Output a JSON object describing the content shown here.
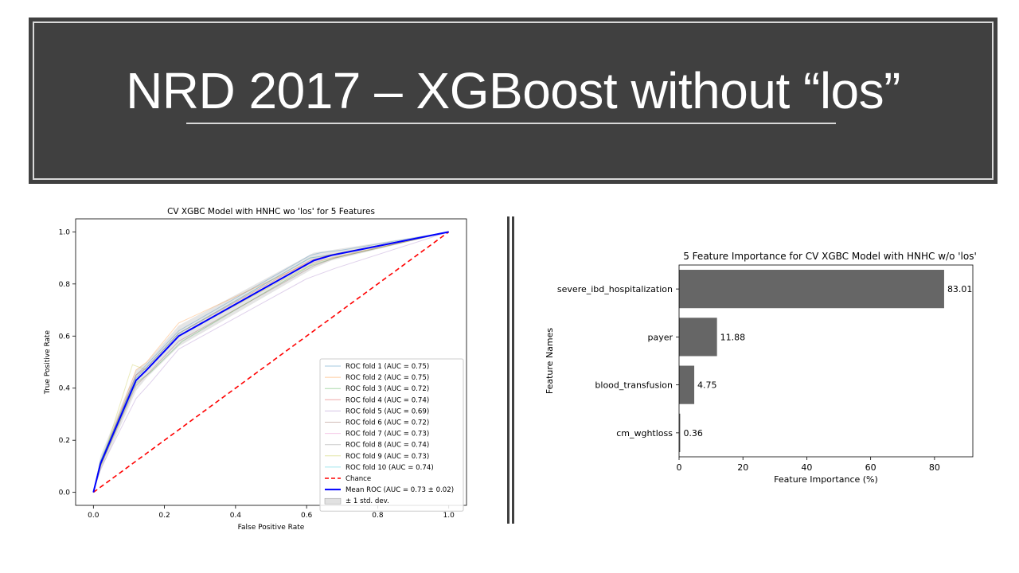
{
  "slide": {
    "title": "NRD 2017 – XGBoost without “los”"
  },
  "chart_data": [
    {
      "type": "line",
      "title": "CV XGBC Model with HNHC wo 'los' for 5 Features",
      "xlabel": "False Positive Rate",
      "ylabel": "True Positive Rate",
      "xlim": [
        -0.05,
        1.05
      ],
      "ylim": [
        -0.05,
        1.05
      ],
      "xticks": [
        "0.0",
        "0.2",
        "0.4",
        "0.6",
        "0.8",
        "1.0"
      ],
      "yticks": [
        "0.0",
        "0.2",
        "0.4",
        "0.6",
        "0.8",
        "1.0"
      ],
      "grid": false,
      "legend_position": "lower-right",
      "series": [
        {
          "name": "ROC fold 1 (AUC = 0.75)",
          "color": "#1f77b4",
          "style": "fold",
          "x": [
            0,
            0.02,
            0.12,
            0.15,
            0.24,
            0.61,
            0.64,
            0.7,
            1.0
          ],
          "y": [
            0,
            0.12,
            0.45,
            0.49,
            0.62,
            0.91,
            0.92,
            0.93,
            1.0
          ]
        },
        {
          "name": "ROC fold 2 (AUC = 0.75)",
          "color": "#ff7f0e",
          "style": "fold",
          "x": [
            0,
            0.02,
            0.12,
            0.15,
            0.24,
            0.62,
            0.66,
            1.0
          ],
          "y": [
            0,
            0.11,
            0.47,
            0.5,
            0.65,
            0.89,
            0.91,
            1.0
          ]
        },
        {
          "name": "ROC fold 3 (AUC = 0.72)",
          "color": "#2ca02c",
          "style": "fold",
          "x": [
            0,
            0.02,
            0.12,
            0.16,
            0.25,
            0.61,
            0.68,
            1.0
          ],
          "y": [
            0,
            0.1,
            0.42,
            0.46,
            0.58,
            0.87,
            0.9,
            1.0
          ]
        },
        {
          "name": "ROC fold 4 (AUC = 0.74)",
          "color": "#d62728",
          "style": "fold",
          "x": [
            0,
            0.02,
            0.12,
            0.15,
            0.24,
            0.61,
            0.66,
            1.0
          ],
          "y": [
            0,
            0.11,
            0.45,
            0.48,
            0.61,
            0.89,
            0.91,
            1.0
          ]
        },
        {
          "name": "ROC fold 5 (AUC = 0.69)",
          "color": "#9467bd",
          "style": "fold",
          "x": [
            0,
            0.02,
            0.12,
            0.16,
            0.24,
            0.6,
            0.68,
            1.0
          ],
          "y": [
            0,
            0.09,
            0.36,
            0.42,
            0.55,
            0.82,
            0.86,
            1.0
          ]
        },
        {
          "name": "ROC fold 6 (AUC = 0.72)",
          "color": "#8c564b",
          "style": "fold",
          "x": [
            0,
            0.02,
            0.12,
            0.15,
            0.24,
            0.62,
            0.68,
            1.0
          ],
          "y": [
            0,
            0.1,
            0.41,
            0.45,
            0.58,
            0.87,
            0.9,
            1.0
          ]
        },
        {
          "name": "ROC fold 7 (AUC = 0.73)",
          "color": "#e377c2",
          "style": "fold",
          "x": [
            0,
            0.02,
            0.12,
            0.15,
            0.24,
            0.61,
            0.67,
            1.0
          ],
          "y": [
            0,
            0.11,
            0.43,
            0.47,
            0.6,
            0.88,
            0.9,
            1.0
          ]
        },
        {
          "name": "ROC fold 8 (AUC = 0.74)",
          "color": "#7f7f7f",
          "style": "fold",
          "x": [
            0,
            0.02,
            0.12,
            0.15,
            0.24,
            0.61,
            0.66,
            1.0
          ],
          "y": [
            0,
            0.12,
            0.44,
            0.48,
            0.61,
            0.9,
            0.91,
            1.0
          ]
        },
        {
          "name": "ROC fold 9 (AUC = 0.73)",
          "color": "#bcbd22",
          "style": "fold",
          "x": [
            0,
            0.02,
            0.11,
            0.15,
            0.24,
            0.62,
            0.67,
            1.0
          ],
          "y": [
            0,
            0.1,
            0.49,
            0.47,
            0.6,
            0.88,
            0.9,
            1.0
          ]
        },
        {
          "name": "ROC fold 10 (AUC = 0.74)",
          "color": "#17becf",
          "style": "fold",
          "x": [
            0,
            0.02,
            0.12,
            0.15,
            0.24,
            0.61,
            0.66,
            1.0
          ],
          "y": [
            0,
            0.12,
            0.44,
            0.48,
            0.61,
            0.9,
            0.91,
            1.0
          ]
        },
        {
          "name": "Chance",
          "color": "#ff0000",
          "style": "dashed",
          "x": [
            0,
            1
          ],
          "y": [
            0,
            1
          ]
        },
        {
          "name": "Mean ROC (AUC = 0.73 ± 0.02)",
          "color": "#0000ff",
          "style": "mean",
          "x": [
            0,
            0.02,
            0.12,
            0.15,
            0.24,
            0.62,
            0.67,
            1.0
          ],
          "y": [
            0,
            0.11,
            0.43,
            0.47,
            0.6,
            0.89,
            0.91,
            1.0
          ]
        }
      ],
      "band": {
        "name": "± 1 std. dev.",
        "color": "#aaaaaa",
        "x": [
          0,
          0.02,
          0.12,
          0.15,
          0.24,
          0.62,
          0.67,
          1.0
        ],
        "lower": [
          0,
          0.08,
          0.39,
          0.44,
          0.56,
          0.86,
          0.89,
          1.0
        ],
        "upper": [
          0,
          0.14,
          0.47,
          0.5,
          0.64,
          0.92,
          0.93,
          1.0
        ]
      }
    },
    {
      "type": "bar",
      "orientation": "horizontal",
      "title": "5 Feature Importance for CV XGBC Model with HNHC w/o 'los'",
      "xlabel": "Feature Importance (%)",
      "ylabel": "Feature Names",
      "categories": [
        "severe_ibd_hospitalization",
        "payer",
        "blood_transfusion",
        "cm_wghtloss"
      ],
      "values": [
        83.01,
        11.88,
        4.75,
        0.36
      ],
      "value_labels": [
        "83.01",
        "11.88",
        "4.75",
        "0.36"
      ],
      "xlim": [
        0,
        92
      ],
      "xticks": [
        0,
        20,
        40,
        60,
        80
      ],
      "bar_color": "#666666",
      "grid": false
    }
  ]
}
